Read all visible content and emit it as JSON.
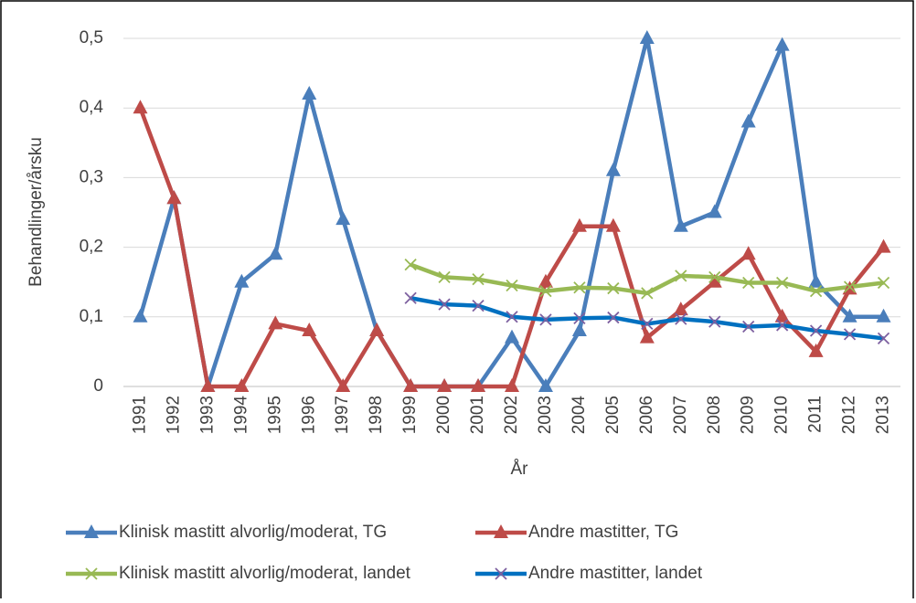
{
  "chart_data": {
    "type": "line",
    "x_label": "År",
    "y_label": "Behandlinger/årsku",
    "categories": [
      "1991",
      "1992",
      "1993",
      "1994",
      "1995",
      "1996",
      "1997",
      "1998",
      "1999",
      "2000",
      "2001",
      "2002",
      "2003",
      "2004",
      "2005",
      "2006",
      "2007",
      "2008",
      "2009",
      "2010",
      "2011",
      "2012",
      "2013"
    ],
    "ylim": [
      0,
      0.5
    ],
    "yticks": [
      0,
      {
        "value": 0.1,
        "label": "0,1"
      },
      {
        "value": 0.2,
        "label": "0,2"
      },
      {
        "value": 0.3,
        "label": "0,3"
      },
      {
        "value": 0.4,
        "label": "0,4"
      },
      {
        "value": 0.5,
        "label": "0,5"
      }
    ],
    "grid": true,
    "series": [
      {
        "name": "Klinisk mastitt alvorlig/moderat, TG",
        "color": "#4a7ebb",
        "marker": "triangle",
        "marker_color": "#4a7ebb",
        "values": [
          0.1,
          0.27,
          0,
          0.15,
          0.19,
          0.42,
          0.24,
          0.08,
          0,
          0,
          0,
          0.07,
          0,
          0.08,
          0.31,
          0.5,
          0.23,
          0.25,
          0.38,
          0.49,
          0.15,
          0.1,
          0.1
        ]
      },
      {
        "name": "Andre mastitter, TG",
        "color": "#be4b48",
        "marker": "triangle",
        "marker_color": "#be4b48",
        "values": [
          0.4,
          0.27,
          0,
          0,
          0.09,
          0.08,
          0,
          0.08,
          0,
          0,
          0,
          0,
          0.15,
          0.23,
          0.23,
          0.07,
          0.11,
          0.15,
          0.19,
          0.1,
          0.05,
          0.14,
          0.2
        ]
      },
      {
        "name": "Klinisk mastitt alvorlig/moderat, landet",
        "color": "#98b954",
        "marker": "x",
        "marker_color": "#98b954",
        "values": [
          null,
          null,
          null,
          null,
          null,
          null,
          null,
          null,
          0.175,
          0.157,
          0.154,
          0.145,
          0.137,
          0.142,
          0.141,
          0.134,
          0.159,
          0.157,
          0.149,
          0.149,
          0.137,
          0.143,
          0.149
        ]
      },
      {
        "name": "Andre mastitter, landet",
        "color": "#0070c0",
        "marker": "x",
        "marker_color": "#7d60a0",
        "values": [
          null,
          null,
          null,
          null,
          null,
          null,
          null,
          null,
          0.127,
          0.118,
          0.116,
          0.1,
          0.096,
          0.098,
          0.099,
          0.09,
          0.097,
          0.093,
          0.086,
          0.088,
          0.08,
          0.075,
          0.069
        ]
      }
    ]
  }
}
